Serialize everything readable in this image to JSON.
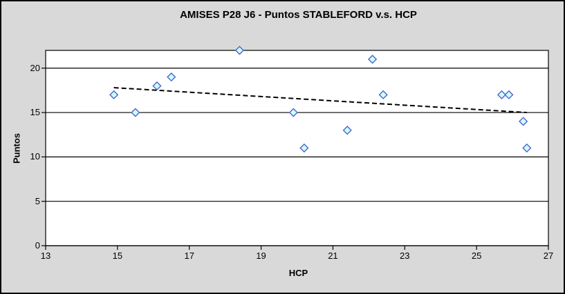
{
  "chart_data": {
    "type": "scatter",
    "title": "AMISES P28 J6 - Puntos STABLEFORD v.s. HCP",
    "xlabel": "HCP",
    "ylabel": "Puntos",
    "xlim": [
      13,
      27
    ],
    "ylim": [
      0,
      22
    ],
    "xticks": [
      13,
      15,
      17,
      19,
      21,
      23,
      25,
      27
    ],
    "yticks": [
      0,
      5,
      10,
      15,
      20
    ],
    "grid": "horizontal",
    "legend": "none",
    "series": [
      {
        "name": "Puntos STABLEFORD",
        "marker": "diamond",
        "points": [
          {
            "x": 14.9,
            "y": 17
          },
          {
            "x": 15.5,
            "y": 15
          },
          {
            "x": 16.1,
            "y": 18
          },
          {
            "x": 16.5,
            "y": 19
          },
          {
            "x": 18.4,
            "y": 22
          },
          {
            "x": 19.9,
            "y": 15
          },
          {
            "x": 20.2,
            "y": 11
          },
          {
            "x": 21.4,
            "y": 13
          },
          {
            "x": 22.1,
            "y": 21
          },
          {
            "x": 22.4,
            "y": 17
          },
          {
            "x": 25.7,
            "y": 17
          },
          {
            "x": 25.9,
            "y": 17
          },
          {
            "x": 26.3,
            "y": 14
          },
          {
            "x": 26.4,
            "y": 11
          }
        ]
      }
    ],
    "trendline": {
      "style": "dashed",
      "x1": 14.9,
      "y1": 17.8,
      "x2": 26.4,
      "y2": 15.0
    },
    "colors": {
      "background": "#d9d9d9",
      "plot_background": "#ffffff",
      "axis_line": "#000000",
      "gridline": "#000000",
      "trendline": "#000000",
      "marker_fill": "#ccffff",
      "marker_stroke": "#4f63c8",
      "text": "#000000"
    }
  }
}
